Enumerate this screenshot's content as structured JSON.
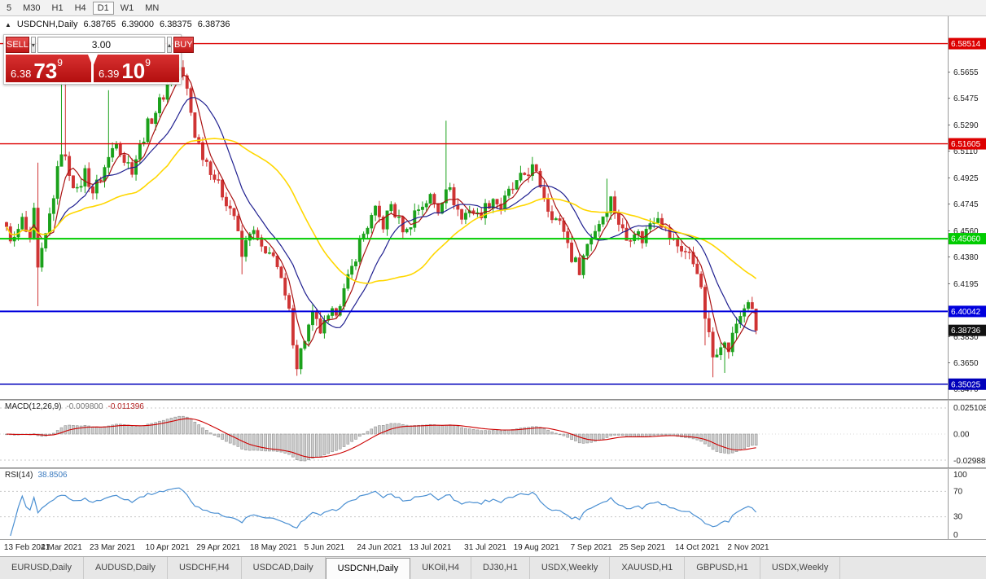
{
  "toolbar": {
    "timeframes": [
      "5",
      "M30",
      "H1",
      "H4",
      "D1",
      "W1",
      "MN"
    ],
    "active": "D1"
  },
  "header": {
    "symbol": "USDCNH,Daily",
    "open": "6.38765",
    "high": "6.39000",
    "low": "6.38375",
    "close": "6.38736",
    "collapse_icon": "▲"
  },
  "trade_panel": {
    "sell_label": "SELL",
    "buy_label": "BUY",
    "volume": "3.00",
    "spin_down": "▾",
    "spin_up": "▴",
    "sell_price": {
      "main": "6.38",
      "big": "73",
      "sup": "9"
    },
    "buy_price": {
      "main": "6.39",
      "big": "10",
      "sup": "9"
    }
  },
  "price_axis": {
    "ticks": [
      "6.5655",
      "6.5475",
      "6.5290",
      "6.5110",
      "6.4925",
      "6.4745",
      "6.4560",
      "6.4380",
      "6.4195",
      "6.4015",
      "6.3830",
      "6.3650",
      "6.3470"
    ]
  },
  "levels": [
    {
      "price": 6.58514,
      "label": "6.58514",
      "color": "#dd0000",
      "width": 1.4
    },
    {
      "price": 6.51605,
      "label": "6.51605",
      "color": "#dd0000",
      "width": 1.4
    },
    {
      "price": 6.4506,
      "label": "6.45060",
      "color": "#00cc00",
      "width": 2
    },
    {
      "price": 6.40042,
      "label": "6.40042",
      "color": "#0000dd",
      "width": 2
    },
    {
      "price": 6.35025,
      "label": "6.35025",
      "color": "#0000bb",
      "width": 1.4
    }
  ],
  "current_price": {
    "value": 6.38736,
    "label": "6.38736",
    "color": "#111111"
  },
  "macd_panel": {
    "label": "MACD(12,26,9)",
    "value_main": "-0.009800",
    "value_signal": "-0.011396",
    "axis_top": "0.025108",
    "axis_zero": "0.00",
    "axis_bottom": "-0.029881"
  },
  "rsi_panel": {
    "label": "RSI(14)",
    "value": "38.8506",
    "axis": [
      "100",
      "70",
      "30",
      "0"
    ],
    "upper": 70,
    "lower": 30
  },
  "date_axis": {
    "labels": [
      "13 Feb 2021",
      "4 Mar 2021",
      "23 Mar 2021",
      "10 Apr 2021",
      "29 Apr 2021",
      "18 May 2021",
      "5 Jun 2021",
      "24 Jun 2021",
      "13 Jul 2021",
      "31 Jul 2021",
      "19 Aug 2021",
      "7 Sep 2021",
      "25 Sep 2021",
      "14 Oct 2021",
      "2 Nov 2021"
    ],
    "indices": [
      0,
      14,
      27,
      41,
      54,
      68,
      81,
      95,
      108,
      122,
      135,
      149,
      162,
      176,
      189
    ]
  },
  "tabs": [
    {
      "label": "EURUSD,Daily",
      "active": false
    },
    {
      "label": "AUDUSD,Daily",
      "active": false
    },
    {
      "label": "USDCHF,H4",
      "active": false
    },
    {
      "label": "USDCAD,Daily",
      "active": false
    },
    {
      "label": "USDCNH,Daily",
      "active": true
    },
    {
      "label": "UKOil,H4",
      "active": false
    },
    {
      "label": "DJ30,H1",
      "active": false
    },
    {
      "label": "USDX,Weekly",
      "active": false
    },
    {
      "label": "XAUUSD,H1",
      "active": false
    },
    {
      "label": "GBPUSD,H1",
      "active": false
    },
    {
      "label": "USDX,Weekly",
      "active": false
    }
  ],
  "colors": {
    "bull": "#1ba11b",
    "bear": "#cf3434",
    "macd_hist": "#cdcdcd",
    "macd_hist_border": "#909090",
    "macd_signal": "#cc0000",
    "rsi_line": "#4a8fd2",
    "level_dash": "#c8c8c8",
    "axis_text": "#222222"
  },
  "chart_data": {
    "type": "candlestick",
    "symbol": "USDCNH",
    "timeframe": "Daily",
    "bars": 192,
    "last_close": 6.38736,
    "noise": 0.0045,
    "wick": 0.005,
    "price_view": {
      "top": 6.604,
      "bottom": 6.34
    },
    "close_keypoints": [
      [
        0,
        6.456
      ],
      [
        2,
        6.449
      ],
      [
        4,
        6.463
      ],
      [
        6,
        6.447
      ],
      [
        7,
        6.468
      ],
      [
        8,
        6.428
      ],
      [
        10,
        6.452
      ],
      [
        12,
        6.481
      ],
      [
        14,
        6.512
      ],
      [
        16,
        6.497
      ],
      [
        18,
        6.482
      ],
      [
        20,
        6.497
      ],
      [
        22,
        6.483
      ],
      [
        24,
        6.493
      ],
      [
        26,
        6.506
      ],
      [
        28,
        6.52
      ],
      [
        30,
        6.505
      ],
      [
        32,
        6.499
      ],
      [
        34,
        6.514
      ],
      [
        36,
        6.529
      ],
      [
        38,
        6.539
      ],
      [
        40,
        6.55
      ],
      [
        42,
        6.563
      ],
      [
        44,
        6.569
      ],
      [
        46,
        6.553
      ],
      [
        48,
        6.523
      ],
      [
        50,
        6.509
      ],
      [
        52,
        6.499
      ],
      [
        54,
        6.487
      ],
      [
        56,
        6.477
      ],
      [
        58,
        6.467
      ],
      [
        60,
        6.438
      ],
      [
        62,
        6.457
      ],
      [
        64,
        6.45
      ],
      [
        66,
        6.437
      ],
      [
        68,
        6.442
      ],
      [
        70,
        6.42
      ],
      [
        72,
        6.399
      ],
      [
        74,
        6.364
      ],
      [
        76,
        6.382
      ],
      [
        78,
        6.397
      ],
      [
        80,
        6.387
      ],
      [
        82,
        6.394
      ],
      [
        84,
        6.402
      ],
      [
        86,
        6.414
      ],
      [
        88,
        6.43
      ],
      [
        90,
        6.448
      ],
      [
        92,
        6.46
      ],
      [
        94,
        6.469
      ],
      [
        96,
        6.46
      ],
      [
        98,
        6.474
      ],
      [
        100,
        6.462
      ],
      [
        102,
        6.455
      ],
      [
        104,
        6.469
      ],
      [
        106,
        6.474
      ],
      [
        108,
        6.479
      ],
      [
        110,
        6.47
      ],
      [
        112,
        6.488
      ],
      [
        114,
        6.477
      ],
      [
        116,
        6.464
      ],
      [
        118,
        6.472
      ],
      [
        120,
        6.466
      ],
      [
        122,
        6.472
      ],
      [
        124,
        6.479
      ],
      [
        126,
        6.472
      ],
      [
        128,
        6.482
      ],
      [
        130,
        6.488
      ],
      [
        132,
        6.495
      ],
      [
        134,
        6.499
      ],
      [
        136,
        6.488
      ],
      [
        138,
        6.472
      ],
      [
        140,
        6.464
      ],
      [
        142,
        6.457
      ],
      [
        144,
        6.438
      ],
      [
        146,
        6.43
      ],
      [
        148,
        6.447
      ],
      [
        150,
        6.457
      ],
      [
        152,
        6.467
      ],
      [
        154,
        6.478
      ],
      [
        156,
        6.462
      ],
      [
        158,
        6.45
      ],
      [
        160,
        6.457
      ],
      [
        162,
        6.45
      ],
      [
        164,
        6.462
      ],
      [
        166,
        6.468
      ],
      [
        168,
        6.456
      ],
      [
        170,
        6.448
      ],
      [
        172,
        6.444
      ],
      [
        174,
        6.439
      ],
      [
        176,
        6.43
      ],
      [
        178,
        6.397
      ],
      [
        180,
        6.369
      ],
      [
        182,
        6.38
      ],
      [
        184,
        6.374
      ],
      [
        186,
        6.392
      ],
      [
        188,
        6.404
      ],
      [
        190,
        6.402
      ],
      [
        191,
        6.38736
      ]
    ],
    "wick_overrides": [
      {
        "i": 8,
        "h": 6.503,
        "l": 6.404
      },
      {
        "i": 14,
        "h": 6.558
      },
      {
        "i": 15,
        "h": 6.566
      },
      {
        "i": 26,
        "h": 6.553
      },
      {
        "i": 42,
        "h": 6.573
      },
      {
        "i": 44,
        "h": 6.576
      },
      {
        "i": 60,
        "l": 6.426
      },
      {
        "i": 74,
        "l": 6.356
      },
      {
        "i": 75,
        "l": 6.359
      },
      {
        "i": 112,
        "h": 6.532
      },
      {
        "i": 134,
        "h": 6.507
      },
      {
        "i": 153,
        "h": 6.492
      },
      {
        "i": 178,
        "l": 6.377
      },
      {
        "i": 180,
        "l": 6.355
      },
      {
        "i": 183,
        "l": 6.358
      }
    ],
    "ma": [
      {
        "period": 5,
        "color": "#aa1111",
        "width": 1.2
      },
      {
        "period": 13,
        "color": "#202090",
        "width": 1.2
      },
      {
        "period": 34,
        "color": "#ffd700",
        "width": 1.6
      }
    ],
    "macd": {
      "fast": 12,
      "slow": 26,
      "signal": 9
    },
    "rsi": {
      "period": 14
    }
  }
}
